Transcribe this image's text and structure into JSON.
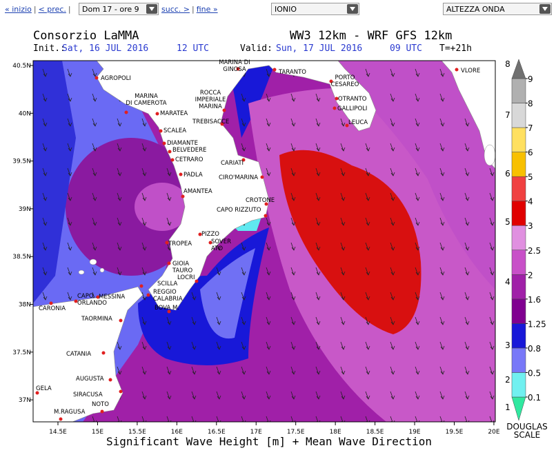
{
  "nav": {
    "links": [
      "« inizio",
      "< prec.",
      "succ. >",
      "fine »"
    ],
    "separator": "|",
    "selects": [
      "Dom 17 - ore 9",
      "IONIO",
      "ALTEZZA ONDA"
    ]
  },
  "header": {
    "producer": "Consorzio LaMMA",
    "model": "WW3 12km - WRF GFS 12km",
    "init_label": "Init.:",
    "init_date": "Sat, 16 JUL 2016",
    "init_time": "12 UTC",
    "valid_label": "Valid:",
    "valid_date": "Sun, 17 JUL 2016",
    "valid_time": "09 UTC",
    "lead_time": "T=+21h"
  },
  "map": {
    "lon_ticks": [
      {
        "value": 14.5,
        "label": "14.5E"
      },
      {
        "value": 15,
        "label": "15E"
      },
      {
        "value": 15.5,
        "label": "15.5E"
      },
      {
        "value": 16,
        "label": "16E"
      },
      {
        "value": 16.5,
        "label": "16.5E"
      },
      {
        "value": 17,
        "label": "17E"
      },
      {
        "value": 17.5,
        "label": "17.5E"
      },
      {
        "value": 18,
        "label": "18E"
      },
      {
        "value": 18.5,
        "label": "18.5E"
      },
      {
        "value": 19,
        "label": "19E"
      },
      {
        "value": 19.5,
        "label": "19.5E"
      },
      {
        "value": 20,
        "label": "20E"
      }
    ],
    "lat_ticks": [
      {
        "value": 40.5,
        "label": "40.5N"
      },
      {
        "value": 40,
        "label": "40N"
      },
      {
        "value": 39.5,
        "label": "39.5N"
      },
      {
        "value": 39,
        "label": "39N"
      },
      {
        "value": 38.5,
        "label": "38.5N"
      },
      {
        "value": 38,
        "label": "38N"
      },
      {
        "value": 37.5,
        "label": "37.5N"
      },
      {
        "value": 37,
        "label": "37N"
      }
    ],
    "places": [
      [
        "AGROPOLI"
      ],
      [
        "MARINA",
        "DI CAMEROTA"
      ],
      [
        "MARATEA"
      ],
      [
        "SCALEA"
      ],
      [
        "DIAMANTE"
      ],
      [
        "BELVEDERE"
      ],
      [
        "CETRARO"
      ],
      [
        "PADLA"
      ],
      [
        "AMANTEA"
      ],
      [
        "PIZZO"
      ],
      [
        "SOVER",
        "ATO"
      ],
      [
        "TROPEA"
      ],
      [
        "GIOIA",
        "TAURO"
      ],
      [
        "LOCRI"
      ],
      [
        "SCILLA"
      ],
      [
        "REGGIO",
        "CALABRIA"
      ],
      [
        "BOVA M."
      ],
      [
        "CAPO",
        "ORLANDO"
      ],
      [
        "CARONIA"
      ],
      [
        "MESSINA"
      ],
      [
        "TAORMINA"
      ],
      [
        "CATANIA"
      ],
      [
        "AUGUSTA"
      ],
      [
        "SIRACUSA"
      ],
      [
        "NOTO"
      ],
      [
        "GELA"
      ],
      [
        "M.RAGUSA"
      ],
      [
        "MARINA DI",
        "GINOSA"
      ],
      [
        "TARANTO"
      ],
      [
        "PORTO",
        "CESAREO"
      ],
      [
        "OTRANTO"
      ],
      [
        "GALLIPOLI"
      ],
      [
        "LEUCA"
      ],
      [
        "VLORE"
      ],
      [
        "ROCCA",
        "IMPERIALE",
        "MARINA"
      ],
      [
        "TREBISACCE"
      ],
      [
        "CARIATI"
      ],
      [
        "CIRO'MARINA"
      ],
      [
        "CROTONE"
      ],
      [
        "CAPO RIZZUTO"
      ]
    ]
  },
  "colorbar": {
    "labels": [
      0.1,
      0.5,
      0.8,
      1.25,
      1.6,
      2,
      2.5,
      3,
      4,
      5,
      6,
      7,
      8,
      9
    ],
    "colors": [
      "#30e8a0",
      "#70f0f0",
      "#7878f8",
      "#1818d8",
      "#800090",
      "#a020a8",
      "#c850c8",
      "#e090e0",
      "#e00000",
      "#f04040",
      "#f8c000",
      "#ffe060",
      "#d8d8d8",
      "#b0b0b0",
      "#707070"
    ],
    "douglas_labels": [
      1,
      2,
      3,
      4,
      5,
      6,
      7,
      8
    ],
    "douglas_title": [
      "DOUGLAS",
      "SCALE"
    ]
  },
  "footer": "Significant Wave Height [m] + Mean Wave Direction"
}
